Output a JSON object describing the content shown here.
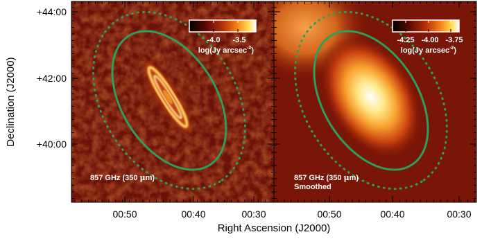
{
  "figure": {
    "axes": {
      "ylabel": "Declination (J2000)",
      "xlabel": "Right Ascension (J2000)",
      "y_ticks": [
        "+44:00",
        "+42:00",
        "+40:00"
      ],
      "x_ticks": [
        "00:50",
        "00:40",
        "00:30"
      ]
    },
    "panels": [
      {
        "label_line1": "857 GHz (350 ",
        "label_mu": "μ",
        "label_line1_end": "m)",
        "label_line2": "",
        "colorbar": {
          "ticks": [
            "-4.0",
            "-3.5"
          ],
          "unit_main": "log(Jy arcsec",
          "unit_sup": "-2",
          "unit_end": ")"
        }
      },
      {
        "label_line1": "857 GHz (350 ",
        "label_mu": "μ",
        "label_line1_end": "m)",
        "label_line2": "Smoothed",
        "colorbar": {
          "ticks": [
            "-4.25",
            "-4.00",
            "-3.75"
          ],
          "unit_main": "log(Jy arcsec",
          "unit_sup": "-2",
          "unit_end": ")"
        }
      }
    ],
    "colors": {
      "ellipse": "#2e9e5a",
      "background": "#6a1208",
      "colormap": [
        "#000000",
        "#5a0a02",
        "#b5300a",
        "#f07a14",
        "#ffd84a",
        "#ffffff"
      ]
    }
  }
}
